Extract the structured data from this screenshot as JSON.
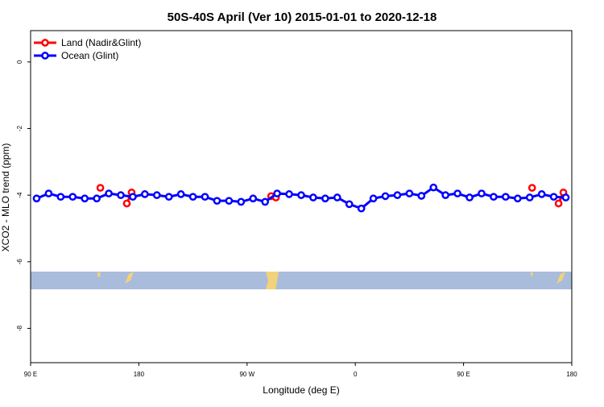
{
  "chart_data": {
    "type": "line",
    "title": "50S-40S April (Ver 10)   2015-01-01 to 2020-12-18",
    "x_label": "Longitude (deg E)",
    "y_label": "XCO2 - MLO trend (ppm)",
    "xlim": [
      90,
      540
    ],
    "ylim": [
      -9.03,
      0.94
    ],
    "xticks": [
      {
        "value": 90,
        "label": "90 E"
      },
      180,
      {
        "value": 270,
        "label": "90 W"
      },
      {
        "value": 360,
        "label": "0"
      },
      {
        "value": 450,
        "label": "90 E"
      },
      {
        "value": 540,
        "label": "180"
      }
    ],
    "yticks": [
      0,
      -2,
      -4,
      -6,
      -8
    ],
    "legend": "top-left",
    "series": [
      {
        "name": "Land (Nadir&Glint)",
        "color": "#ff0000",
        "x": [
          148,
          170,
          174,
          290,
          294,
          507,
          529,
          533
        ],
        "values": [
          -3.78,
          -4.25,
          -3.92,
          -4.03,
          -4.07,
          -3.78,
          -4.25,
          -3.92
        ]
      },
      {
        "name": "Ocean (Glint)",
        "color": "#0000ff",
        "x": [
          95,
          105,
          115,
          125,
          135,
          145,
          155,
          165,
          175,
          185,
          195,
          205,
          215,
          225,
          235,
          245,
          255,
          265,
          275,
          285,
          295,
          305,
          315,
          325,
          335,
          345,
          355,
          365,
          375,
          385,
          395,
          405,
          415,
          425,
          435,
          445,
          455,
          465,
          475,
          485,
          495,
          505,
          515,
          525,
          535
        ],
        "values": [
          -4.1,
          -3.95,
          -4.05,
          -4.05,
          -4.1,
          -4.1,
          -3.95,
          -4.0,
          -4.05,
          -3.97,
          -4.0,
          -4.05,
          -3.97,
          -4.05,
          -4.05,
          -4.17,
          -4.17,
          -4.2,
          -4.1,
          -4.2,
          -3.95,
          -3.97,
          -4.0,
          -4.07,
          -4.1,
          -4.07,
          -4.27,
          -4.4,
          -4.1,
          -4.03,
          -4.0,
          -3.95,
          -4.02,
          -3.77,
          -4.0,
          -3.95,
          -4.07,
          -3.95,
          -4.05,
          -4.05,
          -4.1,
          -4.07,
          -3.97,
          -4.05,
          -4.07
        ]
      }
    ]
  }
}
